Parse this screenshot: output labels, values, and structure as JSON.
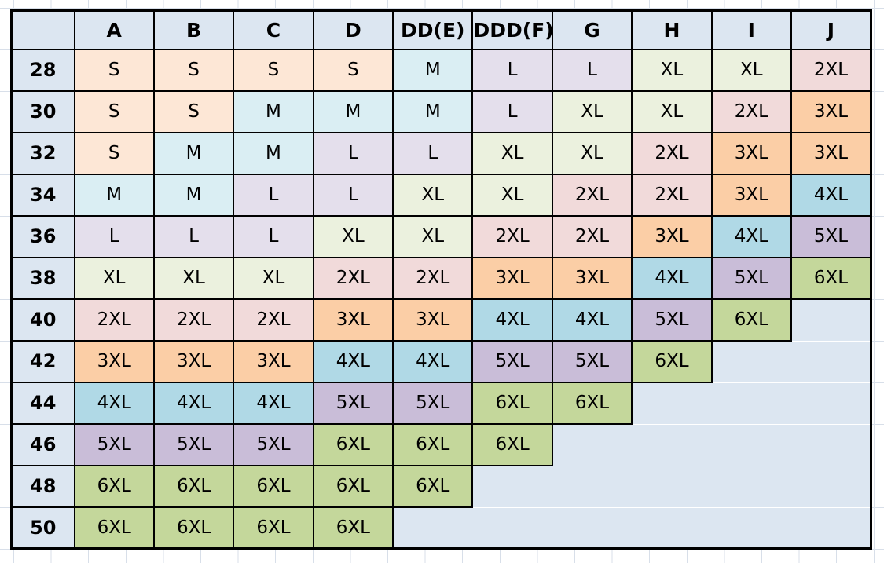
{
  "chart_data": {
    "type": "table",
    "title": "",
    "corner_label": "",
    "columns": [
      "A",
      "B",
      "C",
      "D",
      "DD(E)",
      "DDD(F)",
      "G",
      "H",
      "I",
      "J"
    ],
    "rows": [
      {
        "band": "28",
        "cells": [
          "S",
          "S",
          "S",
          "S",
          "M",
          "L",
          "L",
          "XL",
          "XL",
          "2XL"
        ]
      },
      {
        "band": "30",
        "cells": [
          "S",
          "S",
          "M",
          "M",
          "M",
          "L",
          "XL",
          "XL",
          "2XL",
          "3XL"
        ]
      },
      {
        "band": "32",
        "cells": [
          "S",
          "M",
          "M",
          "L",
          "L",
          "XL",
          "XL",
          "2XL",
          "3XL",
          "3XL"
        ]
      },
      {
        "band": "34",
        "cells": [
          "M",
          "M",
          "L",
          "L",
          "XL",
          "XL",
          "2XL",
          "2XL",
          "3XL",
          "4XL"
        ]
      },
      {
        "band": "36",
        "cells": [
          "L",
          "L",
          "L",
          "XL",
          "XL",
          "2XL",
          "2XL",
          "3XL",
          "4XL",
          "5XL"
        ]
      },
      {
        "band": "38",
        "cells": [
          "XL",
          "XL",
          "XL",
          "2XL",
          "2XL",
          "3XL",
          "3XL",
          "4XL",
          "5XL",
          "6XL"
        ]
      },
      {
        "band": "40",
        "cells": [
          "2XL",
          "2XL",
          "2XL",
          "3XL",
          "3XL",
          "4XL",
          "4XL",
          "5XL",
          "6XL",
          null
        ]
      },
      {
        "band": "42",
        "cells": [
          "3XL",
          "3XL",
          "3XL",
          "4XL",
          "4XL",
          "5XL",
          "5XL",
          "6XL",
          null,
          null
        ]
      },
      {
        "band": "44",
        "cells": [
          "4XL",
          "4XL",
          "4XL",
          "5XL",
          "5XL",
          "6XL",
          "6XL",
          null,
          null,
          null
        ]
      },
      {
        "band": "46",
        "cells": [
          "5XL",
          "5XL",
          "5XL",
          "6XL",
          "6XL",
          "6XL",
          null,
          null,
          null,
          null
        ]
      },
      {
        "band": "48",
        "cells": [
          "6XL",
          "6XL",
          "6XL",
          "6XL",
          "6XL",
          null,
          null,
          null,
          null,
          null
        ]
      },
      {
        "band": "50",
        "cells": [
          "6XL",
          "6XL",
          "6XL",
          "6XL",
          null,
          null,
          null,
          null,
          null,
          null
        ]
      }
    ]
  },
  "colors": {
    "header_bg": "#DCE6F1",
    "row_label_bg": "#DCE6F1",
    "empty_bg": "#DCE6F1",
    "border": "#000000",
    "gridline": "#D8DFE9",
    "size_fills": {
      "S": "#FDE7D6",
      "M": "#DAEEF3",
      "L": "#E4DFEC",
      "XL": "#EBF1DE",
      "2XL": "#F1DADA",
      "3XL": "#FBCEA6",
      "4XL": "#B0D9E6",
      "5XL": "#C9BDD8",
      "6XL": "#C4D79B"
    }
  }
}
